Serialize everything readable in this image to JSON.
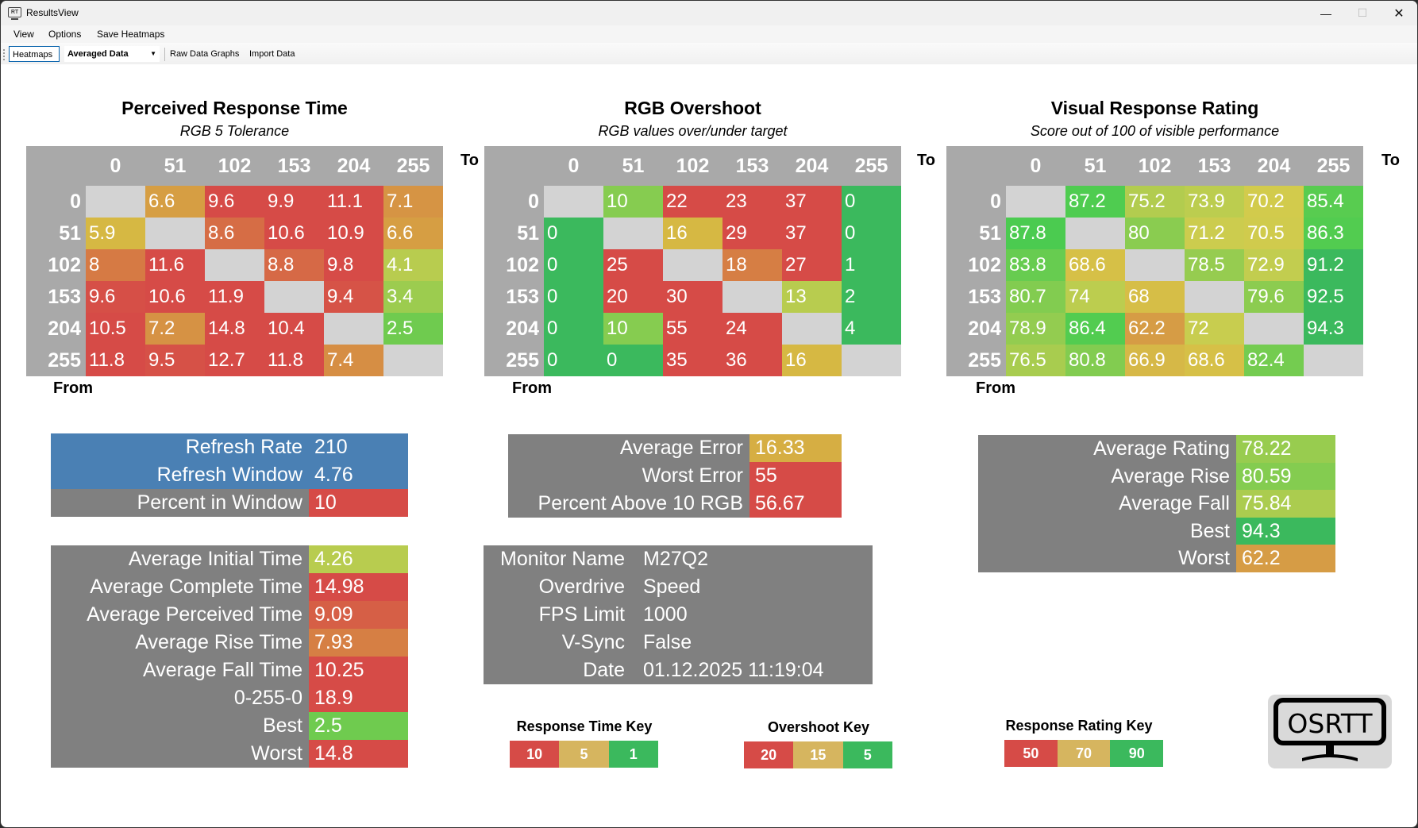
{
  "window": {
    "title": "ResultsView",
    "minimize_icon": "minimize-icon",
    "maximize_icon": "maximize-icon",
    "close_icon": "close-icon"
  },
  "menu": {
    "items": [
      "View",
      "Options",
      "Save Heatmaps"
    ]
  },
  "toolbar": {
    "heatmaps": "Heatmaps",
    "data_select": "Averaged Data",
    "raw_graphs": "Raw Data Graphs",
    "import_data": "Import Data"
  },
  "axis": {
    "columns": [
      "0",
      "51",
      "102",
      "153",
      "204",
      "255"
    ],
    "rows": [
      "0",
      "51",
      "102",
      "153",
      "204",
      "255"
    ],
    "to": "To",
    "from": "From"
  },
  "heatmaps": [
    {
      "title": "Perceived Response Time",
      "subtitle": "RGB 5 Tolerance",
      "cells": [
        [
          {
            "v": "",
            "c": "#d3d3d3"
          },
          {
            "v": "6.6",
            "c": "#d69e43"
          },
          {
            "v": "9.6",
            "c": "#d64b47"
          },
          {
            "v": "9.9",
            "c": "#d64b47"
          },
          {
            "v": "11.1",
            "c": "#d64b47"
          },
          {
            "v": "7.1",
            "c": "#d69444"
          }
        ],
        [
          {
            "v": "5.9",
            "c": "#d6b843"
          },
          {
            "v": "",
            "c": "#d3d3d3"
          },
          {
            "v": "8.6",
            "c": "#d66d45"
          },
          {
            "v": "10.6",
            "c": "#d64b47"
          },
          {
            "v": "10.9",
            "c": "#d64b47"
          },
          {
            "v": "6.6",
            "c": "#d69e43"
          }
        ],
        [
          {
            "v": "8",
            "c": "#d67a44"
          },
          {
            "v": "11.6",
            "c": "#d64b47"
          },
          {
            "v": "",
            "c": "#d3d3d3"
          },
          {
            "v": "8.8",
            "c": "#d66946"
          },
          {
            "v": "9.8",
            "c": "#d64b47"
          },
          {
            "v": "4.1",
            "c": "#b8cc4f"
          }
        ],
        [
          {
            "v": "9.6",
            "c": "#d64f47"
          },
          {
            "v": "10.6",
            "c": "#d64b47"
          },
          {
            "v": "11.9",
            "c": "#d64b47"
          },
          {
            "v": "",
            "c": "#d3d3d3"
          },
          {
            "v": "9.4",
            "c": "#d65347"
          },
          {
            "v": "3.4",
            "c": "#9ccc4f"
          }
        ],
        [
          {
            "v": "10.5",
            "c": "#d64b47"
          },
          {
            "v": "7.2",
            "c": "#d69244"
          },
          {
            "v": "14.8",
            "c": "#d64b47"
          },
          {
            "v": "10.4",
            "c": "#d64b47"
          },
          {
            "v": "",
            "c": "#d3d3d3"
          },
          {
            "v": "2.5",
            "c": "#6fcb4f"
          }
        ],
        [
          {
            "v": "11.8",
            "c": "#d64b47"
          },
          {
            "v": "9.5",
            "c": "#d65147"
          },
          {
            "v": "12.7",
            "c": "#d64b47"
          },
          {
            "v": "11.8",
            "c": "#d64b47"
          },
          {
            "v": "7.4",
            "c": "#d68e44"
          },
          {
            "v": "",
            "c": "#d3d3d3"
          }
        ]
      ]
    },
    {
      "title": "RGB Overshoot",
      "subtitle": "RGB values over/under target",
      "cells": [
        [
          {
            "v": "",
            "c": "#d3d3d3"
          },
          {
            "v": "10",
            "c": "#86cc50"
          },
          {
            "v": "22",
            "c": "#d64b47"
          },
          {
            "v": "23",
            "c": "#d64b47"
          },
          {
            "v": "37",
            "c": "#d64b47"
          },
          {
            "v": "0",
            "c": "#3bb95d"
          }
        ],
        [
          {
            "v": "0",
            "c": "#3bb95d"
          },
          {
            "v": "",
            "c": "#d3d3d3"
          },
          {
            "v": "16",
            "c": "#d6b843"
          },
          {
            "v": "29",
            "c": "#d64b47"
          },
          {
            "v": "37",
            "c": "#d64b47"
          },
          {
            "v": "0",
            "c": "#3bb95d"
          }
        ],
        [
          {
            "v": "0",
            "c": "#3bb95d"
          },
          {
            "v": "25",
            "c": "#d64b47"
          },
          {
            "v": "",
            "c": "#d3d3d3"
          },
          {
            "v": "18",
            "c": "#d67e44"
          },
          {
            "v": "27",
            "c": "#d64b47"
          },
          {
            "v": "1",
            "c": "#3bb95d"
          }
        ],
        [
          {
            "v": "0",
            "c": "#3bb95d"
          },
          {
            "v": "20",
            "c": "#d64b47"
          },
          {
            "v": "30",
            "c": "#d64b47"
          },
          {
            "v": "",
            "c": "#d3d3d3"
          },
          {
            "v": "13",
            "c": "#b8cc4f"
          },
          {
            "v": "2",
            "c": "#3bb95d"
          }
        ],
        [
          {
            "v": "0",
            "c": "#3bb95d"
          },
          {
            "v": "10",
            "c": "#86cc50"
          },
          {
            "v": "55",
            "c": "#d64b47"
          },
          {
            "v": "24",
            "c": "#d64b47"
          },
          {
            "v": "",
            "c": "#d3d3d3"
          },
          {
            "v": "4",
            "c": "#3bb95d"
          }
        ],
        [
          {
            "v": "0",
            "c": "#3bb95d"
          },
          {
            "v": "0",
            "c": "#3bb95d"
          },
          {
            "v": "35",
            "c": "#d64b47"
          },
          {
            "v": "36",
            "c": "#d64b47"
          },
          {
            "v": "16",
            "c": "#d6b843"
          },
          {
            "v": "",
            "c": "#d3d3d3"
          }
        ]
      ]
    },
    {
      "title": "Visual Response Rating",
      "subtitle": "Score out of 100 of visible performance",
      "cells": [
        [
          {
            "v": "",
            "c": "#d3d3d3"
          },
          {
            "v": "87.2",
            "c": "#4fcc50"
          },
          {
            "v": "75.2",
            "c": "#b2cc4f"
          },
          {
            "v": "73.9",
            "c": "#bccd4f"
          },
          {
            "v": "70.2",
            "c": "#d2cb4c"
          },
          {
            "v": "85.4",
            "c": "#58cc50"
          }
        ],
        [
          {
            "v": "87.8",
            "c": "#4bcb50"
          },
          {
            "v": "",
            "c": "#d3d3d3"
          },
          {
            "v": "80",
            "c": "#8acc50"
          },
          {
            "v": "71.2",
            "c": "#cccc4e"
          },
          {
            "v": "70.5",
            "c": "#d0cb4d"
          },
          {
            "v": "86.3",
            "c": "#52cc50"
          }
        ],
        [
          {
            "v": "83.8",
            "c": "#67cc50"
          },
          {
            "v": "68.6",
            "c": "#d6c047"
          },
          {
            "v": "",
            "c": "#d3d3d3"
          },
          {
            "v": "78.5",
            "c": "#96cc50"
          },
          {
            "v": "72.9",
            "c": "#c2cd4f"
          },
          {
            "v": "91.2",
            "c": "#3bb95d"
          }
        ],
        [
          {
            "v": "80.7",
            "c": "#82cc50"
          },
          {
            "v": "74",
            "c": "#bccd4f"
          },
          {
            "v": "68",
            "c": "#d6be47"
          },
          {
            "v": "",
            "c": "#d3d3d3"
          },
          {
            "v": "79.6",
            "c": "#8ccc50"
          },
          {
            "v": "92.5",
            "c": "#3bb95d"
          }
        ],
        [
          {
            "v": "78.9",
            "c": "#93cc50"
          },
          {
            "v": "86.4",
            "c": "#52cc50"
          },
          {
            "v": "62.2",
            "c": "#d69c45"
          },
          {
            "v": "72",
            "c": "#c8cd4f"
          },
          {
            "v": "",
            "c": "#d3d3d3"
          },
          {
            "v": "94.3",
            "c": "#3bb95d"
          }
        ],
        [
          {
            "v": "76.5",
            "c": "#a8cc4f"
          },
          {
            "v": "80.8",
            "c": "#82cc50"
          },
          {
            "v": "66.9",
            "c": "#d6b847"
          },
          {
            "v": "68.6",
            "c": "#d6c047"
          },
          {
            "v": "82.4",
            "c": "#74cc50"
          },
          {
            "v": "",
            "c": "#d3d3d3"
          }
        ]
      ]
    }
  ],
  "refresh_stats": [
    {
      "label": "Refresh Rate",
      "value": "210",
      "bg": "#4a80b4",
      "vbg": "#4a80b4"
    },
    {
      "label": "Refresh Window",
      "value": "4.76",
      "bg": "#4a80b4",
      "vbg": "#4a80b4"
    },
    {
      "label": "Percent in Window",
      "value": "10",
      "bg": "#808080",
      "vbg": "#d64b47"
    }
  ],
  "response_stats": [
    {
      "label": "Average Initial Time",
      "value": "4.26",
      "vbg": "#b8cc4f"
    },
    {
      "label": "Average Complete Time",
      "value": "14.98",
      "vbg": "#d64b47"
    },
    {
      "label": "Average Perceived Time",
      "value": "9.09",
      "vbg": "#d65f46"
    },
    {
      "label": "Average Rise Time",
      "value": "7.93",
      "vbg": "#d67f44"
    },
    {
      "label": "Average Fall Time",
      "value": "10.25",
      "vbg": "#d64b47"
    },
    {
      "label": "0-255-0",
      "value": "18.9",
      "vbg": "#d64b47"
    },
    {
      "label": "Best",
      "value": "2.5",
      "vbg": "#6fcb4f"
    },
    {
      "label": "Worst",
      "value": "14.8",
      "vbg": "#d64b47"
    }
  ],
  "overshoot_stats": [
    {
      "label": "Average Error",
      "value": "16.33",
      "vbg": "#d6ae43"
    },
    {
      "label": "Worst Error",
      "value": "55",
      "vbg": "#d64b47"
    },
    {
      "label": "Percent Above 10 RGB",
      "value": "56.67",
      "vbg": "#d64b47"
    }
  ],
  "monitor_info": [
    {
      "label": "Monitor Name",
      "value": "M27Q2"
    },
    {
      "label": "Overdrive",
      "value": "Speed"
    },
    {
      "label": "FPS Limit",
      "value": "1000"
    },
    {
      "label": "V-Sync",
      "value": "False"
    },
    {
      "label": "Date",
      "value": "01.12.2025 11:19:04"
    }
  ],
  "rating_stats": [
    {
      "label": "Average Rating",
      "value": "78.22",
      "vbg": "#98cc4f"
    },
    {
      "label": "Average Rise",
      "value": "80.59",
      "vbg": "#84cc50"
    },
    {
      "label": "Average Fall",
      "value": "75.84",
      "vbg": "#abcc4f"
    },
    {
      "label": "Best",
      "value": "94.3",
      "vbg": "#3bb95d"
    },
    {
      "label": "Worst",
      "value": "62.2",
      "vbg": "#d69c45"
    }
  ],
  "keys": [
    {
      "title": "Response Time Key",
      "items": [
        {
          "v": "10",
          "c": "#d64b47"
        },
        {
          "v": "5",
          "c": "#d6b55f"
        },
        {
          "v": "1",
          "c": "#3bb95d"
        }
      ]
    },
    {
      "title": "Overshoot Key",
      "items": [
        {
          "v": "20",
          "c": "#d64b47"
        },
        {
          "v": "15",
          "c": "#d6b55f"
        },
        {
          "v": "5",
          "c": "#3bb95d"
        }
      ]
    },
    {
      "title": "Response Rating Key",
      "items": [
        {
          "v": "50",
          "c": "#d64b47"
        },
        {
          "v": "70",
          "c": "#d6b55f"
        },
        {
          "v": "90",
          "c": "#3bb95d"
        }
      ]
    }
  ],
  "logo": {
    "text": "OSRTT"
  },
  "app_icon_text": "RT"
}
